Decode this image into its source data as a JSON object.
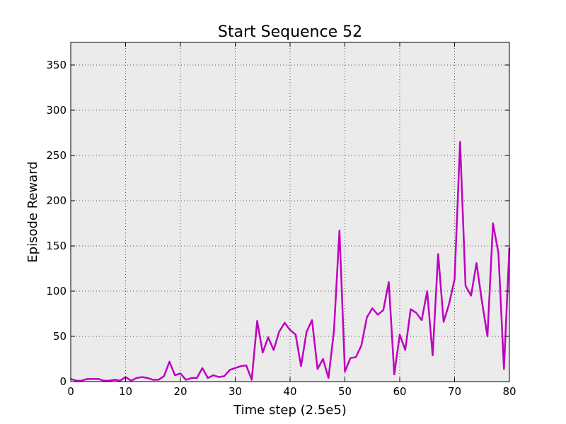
{
  "chart_data": {
    "type": "line",
    "title": "Start Sequence 52",
    "xlabel": "Time step (2.5e5)",
    "ylabel": "Episode Reward",
    "xlim": [
      0,
      80
    ],
    "ylim": [
      0,
      375
    ],
    "xticks": [
      0,
      10,
      20,
      30,
      40,
      50,
      60,
      70,
      80
    ],
    "yticks": [
      0,
      50,
      100,
      150,
      200,
      250,
      300,
      350
    ],
    "grid": true,
    "colors": {
      "background": "#ebebeb",
      "line": "#bf00bf",
      "grid": "#555555"
    },
    "series": [
      {
        "x": [
          0,
          1,
          2,
          3,
          4,
          5,
          6,
          7,
          8,
          9,
          10,
          11,
          12,
          13,
          14,
          15,
          16,
          17,
          18,
          19,
          20,
          21,
          22,
          23,
          24,
          25,
          26,
          27,
          28,
          29,
          30,
          31,
          32,
          33,
          34,
          35,
          36,
          37,
          38,
          39,
          40,
          41,
          42,
          43,
          44,
          45,
          46,
          47,
          48,
          49,
          50,
          51,
          52,
          53,
          54,
          55,
          56,
          57,
          58,
          59,
          60,
          61,
          62,
          63,
          64,
          65,
          66,
          67,
          68,
          69,
          70,
          71,
          72,
          73,
          74,
          75,
          76,
          77,
          78,
          79,
          80
        ],
        "y": [
          3,
          1,
          1,
          3,
          3,
          3,
          1,
          1,
          2,
          1,
          5,
          1,
          4,
          5,
          4,
          2,
          2,
          6,
          22,
          7,
          9,
          2,
          4,
          4,
          15,
          4,
          7,
          5,
          6,
          13,
          15,
          17,
          18,
          2,
          67,
          32,
          49,
          35,
          55,
          65,
          57,
          52,
          17,
          55,
          68,
          14,
          25,
          4,
          56,
          167,
          11,
          26,
          27,
          40,
          71,
          81,
          74,
          79,
          110,
          8,
          52,
          35,
          80,
          76,
          68,
          100,
          29,
          141,
          66,
          86,
          113,
          265,
          106,
          95,
          131,
          88,
          50,
          175,
          142,
          14,
          148
        ]
      }
    ]
  }
}
